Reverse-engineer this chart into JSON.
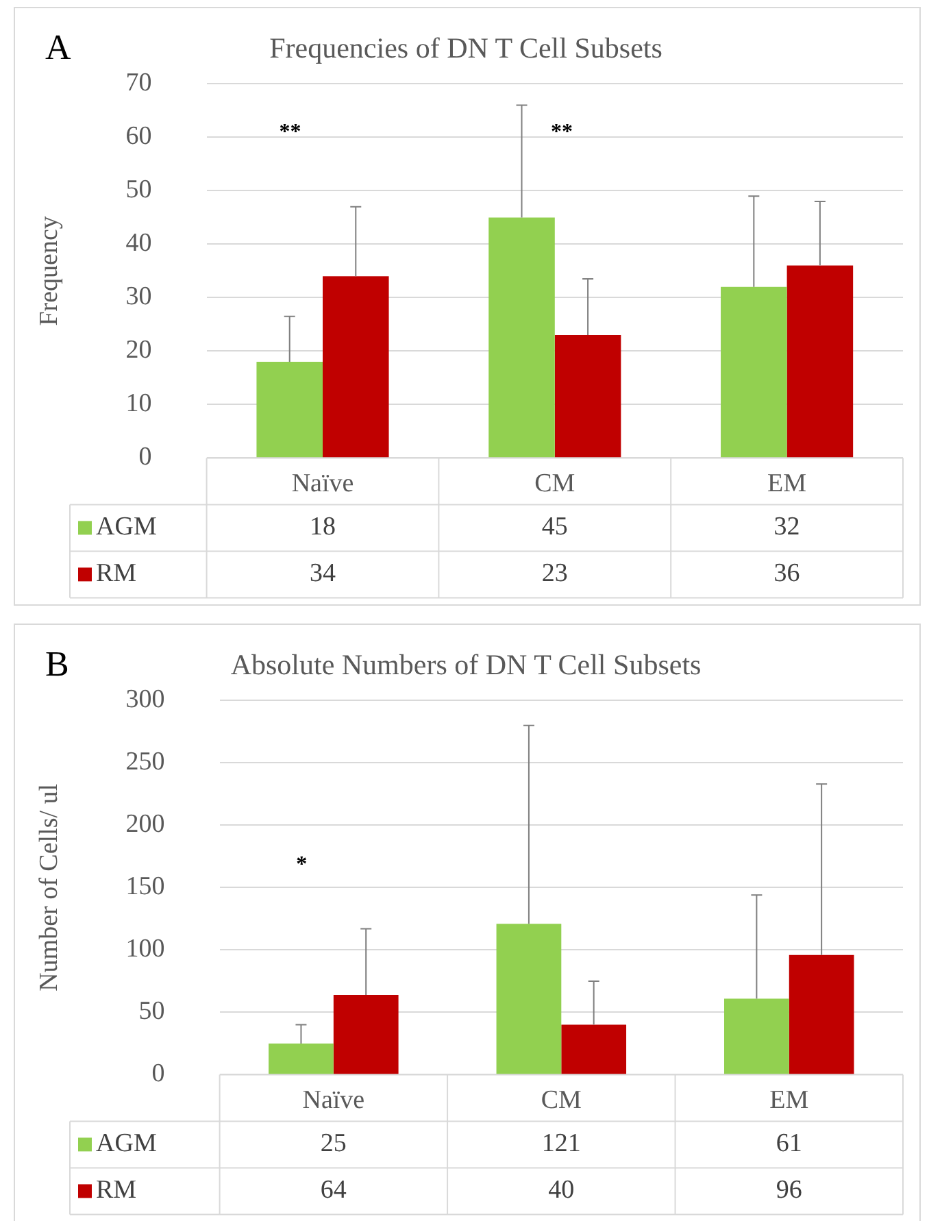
{
  "chart_data": [
    {
      "type": "bar",
      "title": "Frequencies of DN T Cell Subsets",
      "ylabel": "Frequency",
      "categories": [
        "Naïve",
        "CM",
        "EM"
      ],
      "series": [
        {
          "name": "AGM",
          "color": "#92d050",
          "values": [
            18,
            45,
            32
          ],
          "errors": [
            [
              18,
              26.5
            ],
            [
              45,
              66
            ],
            [
              32,
              49
            ]
          ]
        },
        {
          "name": "RM",
          "color": "#c00000",
          "values": [
            34,
            23,
            36
          ],
          "errors": [
            [
              34,
              47
            ],
            [
              23,
              33.5
            ],
            [
              36,
              48
            ]
          ]
        }
      ],
      "ylim": [
        0,
        70
      ],
      "yticks": [
        0,
        10,
        20,
        30,
        40,
        50,
        60,
        70
      ],
      "grid": "y",
      "legend": "bottom",
      "data_labels": true,
      "annotations": [
        "A",
        "**",
        "**"
      ]
    },
    {
      "type": "bar",
      "title": "Absolute Numbers of DN T Cell Subsets",
      "ylabel": "Number of Cells/ ul",
      "categories": [
        "Naïve",
        "CM",
        "EM"
      ],
      "series": [
        {
          "name": "AGM",
          "color": "#92d050",
          "values": [
            25,
            121,
            61
          ],
          "errors": [
            [
              25,
              40
            ],
            [
              121,
              280
            ],
            [
              61,
              144
            ]
          ]
        },
        {
          "name": "RM",
          "color": "#c00000",
          "values": [
            64,
            40,
            96
          ],
          "errors": [
            [
              64,
              117
            ],
            [
              40,
              75
            ],
            [
              96,
              233
            ]
          ]
        }
      ],
      "ylim": [
        0,
        300
      ],
      "yticks": [
        0,
        50,
        100,
        150,
        200,
        250,
        300
      ],
      "grid": "y",
      "legend": "bottom",
      "data_labels": true,
      "annotations": [
        "B",
        "*"
      ]
    }
  ]
}
